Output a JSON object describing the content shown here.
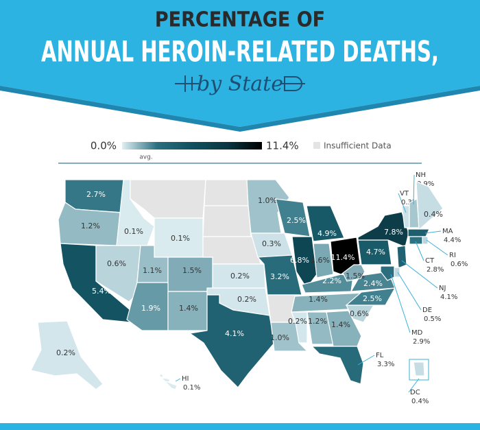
{
  "chart_data": {
    "type": "choropleth",
    "pretitle": "PERCENTAGE OF",
    "title": "ANNUAL HEROIN-RELATED DEATHS,",
    "subtitle": "by State",
    "legend": {
      "min": {
        "value": 0,
        "label": "0.0%"
      },
      "max": {
        "value": 11.4,
        "label": "11.4%"
      },
      "avg_label": "avg.",
      "missing_label": "Insufficient Data",
      "missing_color": "#e4e4e4"
    },
    "color_scale": [
      "#e0eff4",
      "#2b7080",
      "#11505e",
      "#0a3642",
      "#000000"
    ],
    "categories": [
      null,
      null,
      null,
      null,
      null,
      null,
      null,
      null,
      null,
      null,
      null,
      null,
      null,
      null,
      null,
      null,
      null,
      null,
      null,
      null,
      null,
      null,
      null,
      null,
      null,
      null,
      null,
      null,
      null,
      null,
      null,
      null,
      "FL",
      null,
      null,
      null,
      null,
      null,
      null,
      "VT",
      "NH",
      null,
      "MA",
      "RI",
      "CT",
      "NJ",
      "DE",
      "MD",
      "DC",
      null,
      "HI"
    ],
    "values": [
      2.7,
      1.2,
      5.4,
      0.6,
      0.1,
      null,
      0.1,
      1.1,
      1.5,
      1.9,
      1.4,
      null,
      null,
      null,
      0.2,
      0.2,
      4.1,
      1.0,
      0.3,
      3.2,
      null,
      1.0,
      2.5,
      6.8,
      4.9,
      1.6,
      11.4,
      2.2,
      1.4,
      0.2,
      1.2,
      1.4,
      3.3,
      0.6,
      2.5,
      2.4,
      1.5,
      4.7,
      7.8,
      0.3,
      0.9,
      0.4,
      4.4,
      0.6,
      2.8,
      4.1,
      0.5,
      2.9,
      0.4,
      0.2,
      0.1
    ],
    "value_labels": [
      "2.7%",
      "1.2%",
      "5.4%",
      "0.6%",
      "0.1%",
      null,
      "0.1%",
      "1.1%",
      "1.5%",
      "1.9%",
      "1.4%",
      null,
      null,
      null,
      "0.2%",
      "0.2%",
      "4.1%",
      "1.0%",
      "0.3%",
      "3.2%",
      null,
      "1.0%",
      "2.5%",
      "6.8%",
      "4.9%",
      "1.6%",
      "11.4%",
      "2.2%",
      "1.4%",
      "0.2%",
      "1.2%",
      "1.4%",
      "3.3%",
      "0.6%",
      "2.5%",
      "2.4%",
      "1.5%",
      "4.7%",
      "7.8%",
      "0.3%",
      "0.9%",
      "0.4%",
      "4.4%",
      "0.6%",
      "2.8%",
      "4.1%",
      "0.5%",
      "2.9%",
      "0.4%",
      "0.2%",
      "0.1%"
    ]
  }
}
